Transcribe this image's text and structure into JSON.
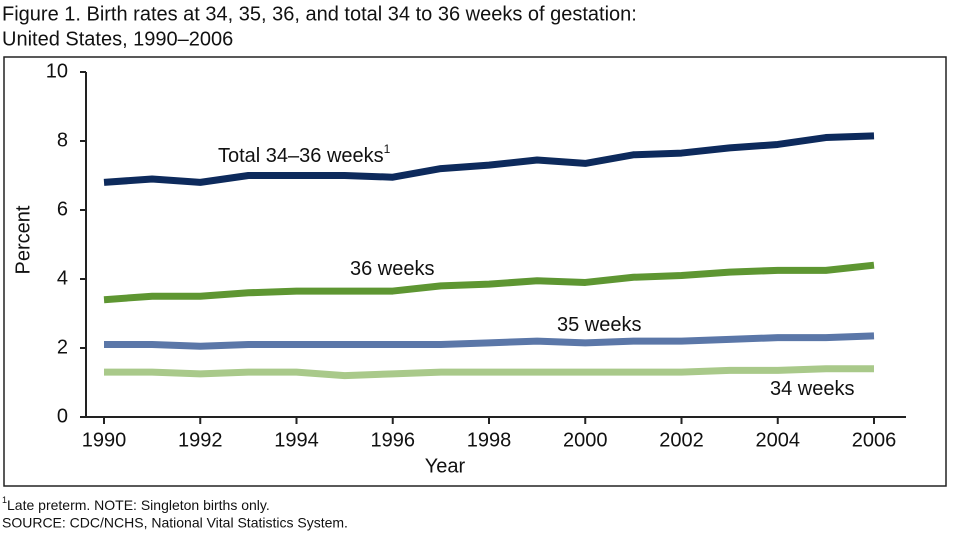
{
  "chart_data": {
    "type": "line",
    "title": "Figure 1. Birth rates at 34, 35, 36, and total 34 to 36 weeks of gestation:",
    "subtitle": "United States, 1990–2006",
    "x_label": "Year",
    "y_label": "Percent",
    "x": [
      1990,
      1991,
      1992,
      1993,
      1994,
      1995,
      1996,
      1997,
      1998,
      1999,
      2000,
      2001,
      2002,
      2003,
      2004,
      2005,
      2006
    ],
    "xlim": [
      1990,
      2006
    ],
    "xticks": [
      1990,
      1992,
      1994,
      1996,
      1998,
      2000,
      2002,
      2004,
      2006
    ],
    "ylim": [
      0,
      10
    ],
    "yticks": [
      0,
      2,
      4,
      6,
      8,
      10
    ],
    "series": [
      {
        "name": "Total 34–36 weeks",
        "name_marker": "1",
        "color": "#0d2a5c",
        "values": [
          6.8,
          6.9,
          6.8,
          7.0,
          7.0,
          7.0,
          6.95,
          7.2,
          7.3,
          7.45,
          7.35,
          7.6,
          7.65,
          7.8,
          7.9,
          8.1,
          8.15
        ]
      },
      {
        "name": "36 weeks",
        "color": "#5e9632",
        "values": [
          3.4,
          3.5,
          3.5,
          3.6,
          3.65,
          3.65,
          3.65,
          3.8,
          3.85,
          3.95,
          3.9,
          4.05,
          4.1,
          4.2,
          4.25,
          4.25,
          4.4
        ]
      },
      {
        "name": "35 weeks",
        "color": "#5b77a8",
        "values": [
          2.1,
          2.1,
          2.05,
          2.1,
          2.1,
          2.1,
          2.1,
          2.1,
          2.15,
          2.2,
          2.15,
          2.2,
          2.2,
          2.25,
          2.3,
          2.3,
          2.35
        ]
      },
      {
        "name": "34 weeks",
        "color": "#a9c98a",
        "values": [
          1.3,
          1.3,
          1.25,
          1.3,
          1.3,
          1.2,
          1.25,
          1.3,
          1.3,
          1.3,
          1.3,
          1.3,
          1.3,
          1.35,
          1.35,
          1.4,
          1.4
        ]
      }
    ],
    "footnote": {
      "marker": "1",
      "text": "Late preterm.  NOTE: Singleton births only."
    },
    "source": "SOURCE: CDC/NCHS, National Vital Statistics System."
  }
}
